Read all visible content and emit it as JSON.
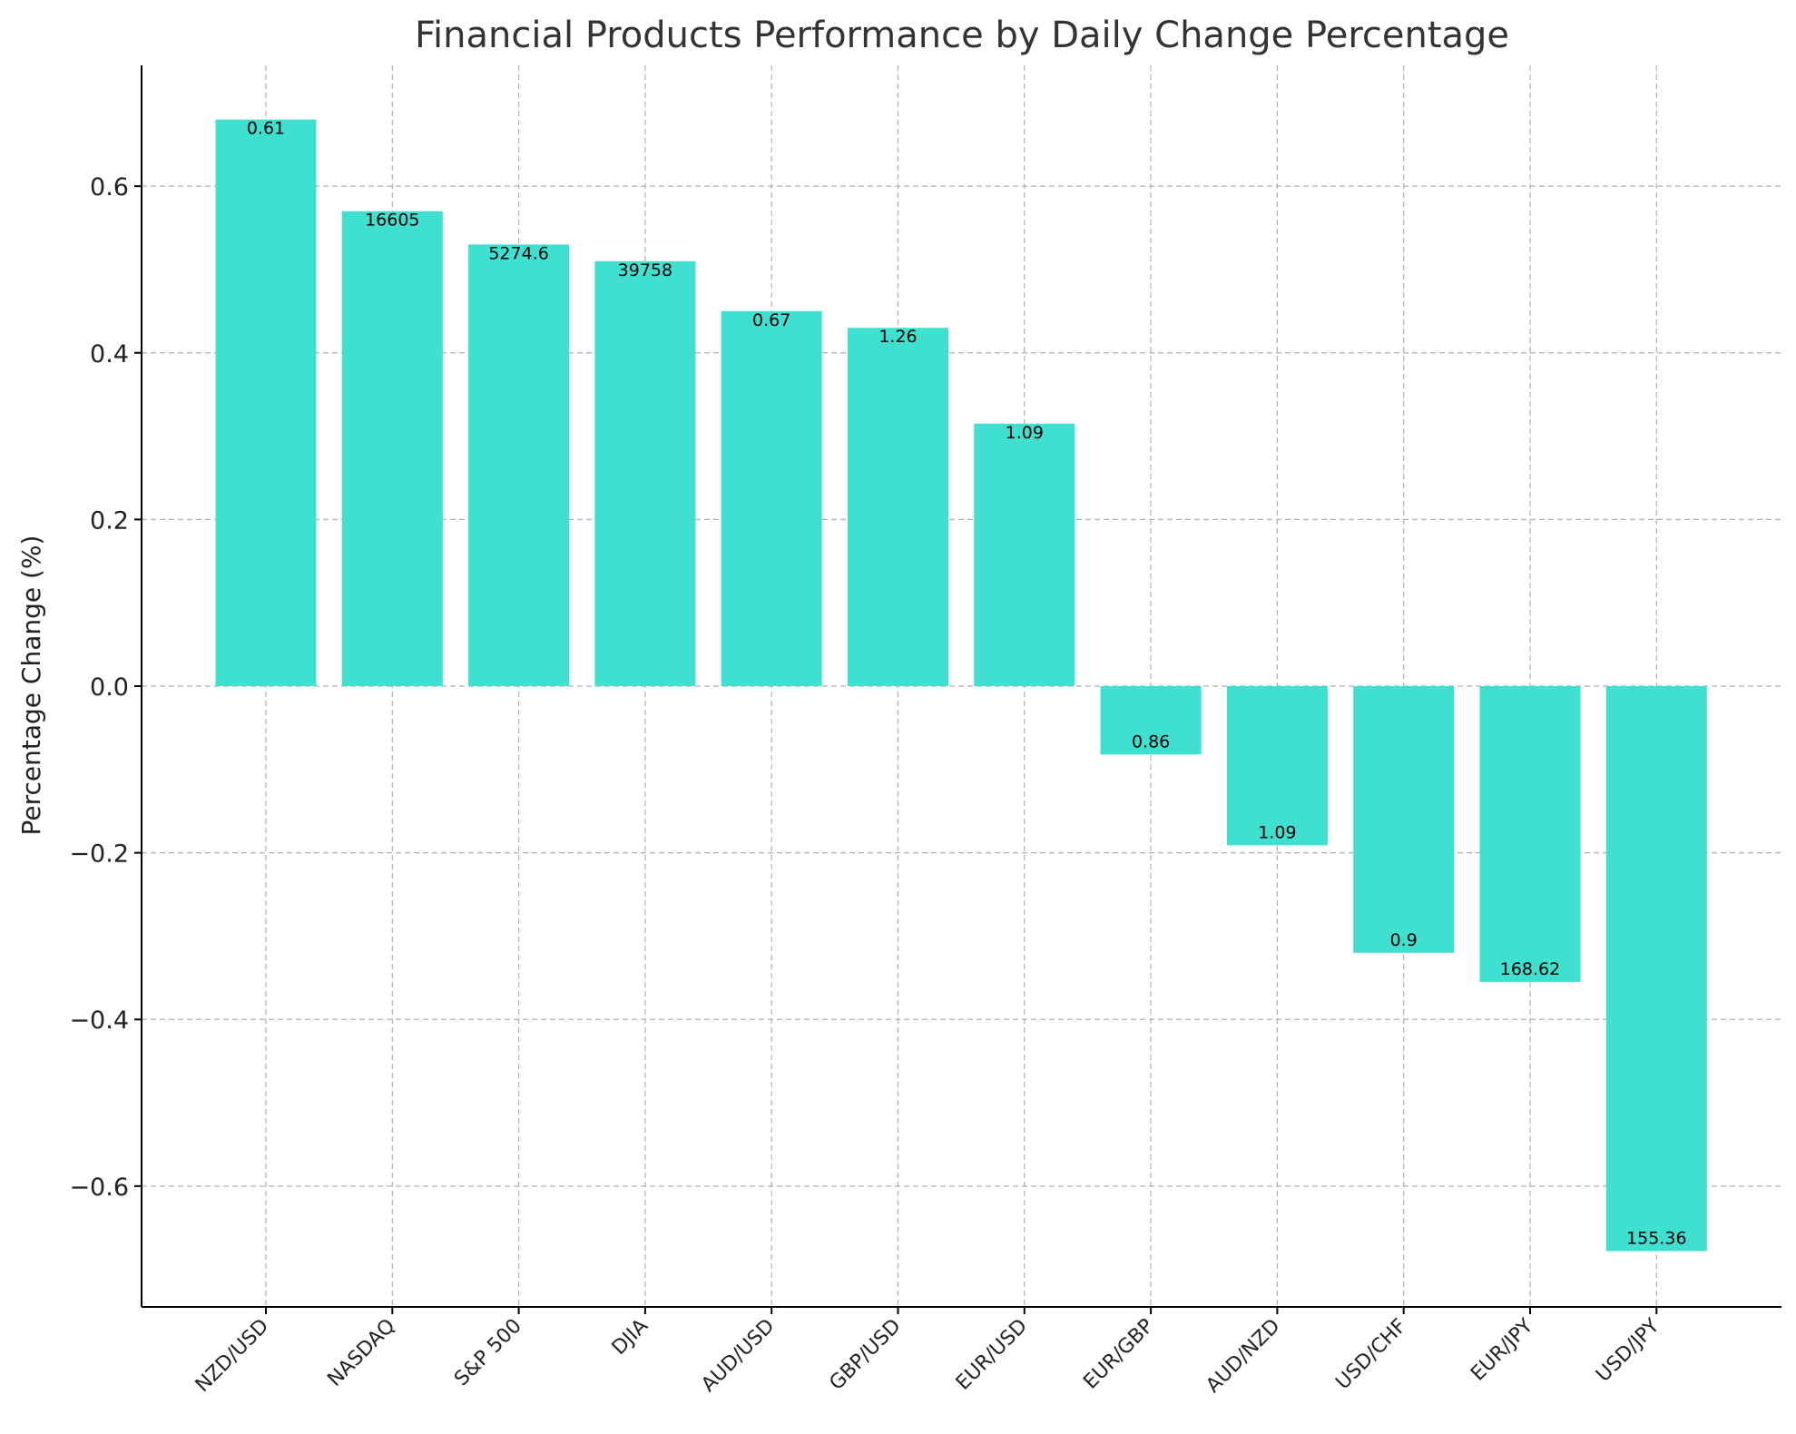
{
  "chart_data": {
    "type": "bar",
    "title": "Financial Products Performance by Daily Change Percentage",
    "xlabel": "",
    "ylabel": "Percentage Change (%)",
    "ylim": [
      -0.745,
      0.745
    ],
    "yticks": [
      -0.6,
      -0.4,
      -0.2,
      0.0,
      0.2,
      0.4,
      0.6
    ],
    "ytick_labels": [
      "−0.6",
      "−0.4",
      "−0.2",
      "0.0",
      "0.2",
      "0.4",
      "0.6"
    ],
    "grid": true,
    "bar_color": "#40e0d0",
    "categories": [
      "NZD/USD",
      "NASDAQ",
      "S&P 500",
      "DJIA",
      "AUD/USD",
      "GBP/USD",
      "EUR/USD",
      "EUR/GBP",
      "AUD/NZD",
      "USD/CHF",
      "EUR/JPY",
      "USD/JPY"
    ],
    "values": [
      0.68,
      0.57,
      0.53,
      0.51,
      0.45,
      0.43,
      0.315,
      -0.082,
      -0.191,
      -0.32,
      -0.355,
      -0.678
    ],
    "data_labels": [
      "0.61",
      "16605",
      "5274.6",
      "39758",
      "0.67",
      "1.26",
      "1.09",
      "0.86",
      "1.09",
      "0.9",
      "168.62",
      "155.36"
    ]
  }
}
